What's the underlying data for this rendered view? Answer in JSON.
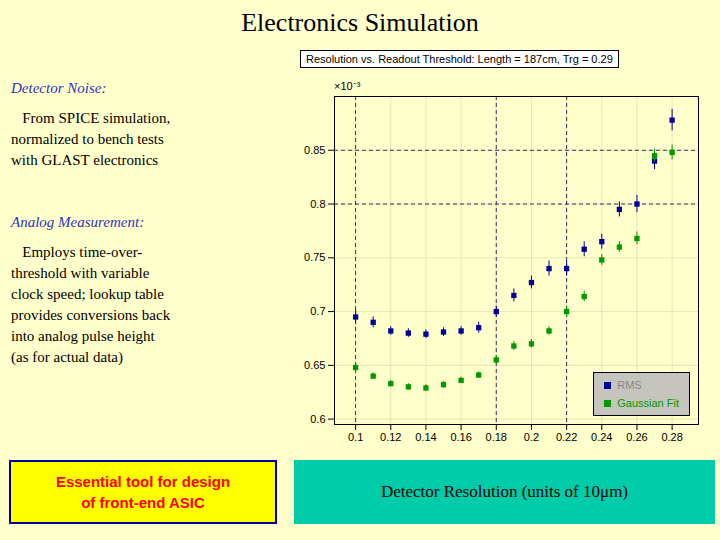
{
  "chart_data": {
    "type": "scatter",
    "title": "Electronics Simulation",
    "subtitle": "Resolution vs. Readout Threshold: Length = 187cm, Trg = 0.29",
    "x": [
      0.1,
      0.11,
      0.12,
      0.13,
      0.14,
      0.15,
      0.16,
      0.17,
      0.18,
      0.19,
      0.2,
      0.21,
      0.22,
      0.23,
      0.24,
      0.25,
      0.26,
      0.27,
      0.28
    ],
    "series": [
      {
        "name": "RMS",
        "color": "#000099",
        "marker": "square",
        "values": [
          0.695,
          0.69,
          0.682,
          0.68,
          0.679,
          0.681,
          0.682,
          0.685,
          0.7,
          0.715,
          0.727,
          0.74,
          0.74,
          0.758,
          0.765,
          0.795,
          0.8,
          0.84,
          0.878
        ],
        "errors": [
          0.006,
          0.005,
          0.004,
          0.004,
          0.004,
          0.004,
          0.004,
          0.005,
          0.005,
          0.006,
          0.006,
          0.007,
          0.007,
          0.007,
          0.007,
          0.007,
          0.008,
          0.008,
          0.01
        ]
      },
      {
        "name": "Gaussian Fit",
        "color": "#009900",
        "marker": "square",
        "values": [
          0.648,
          0.64,
          0.633,
          0.63,
          0.629,
          0.632,
          0.636,
          0.641,
          0.655,
          0.668,
          0.67,
          0.682,
          0.7,
          0.714,
          0.748,
          0.76,
          0.768,
          0.845,
          0.848
        ],
        "errors": [
          0.004,
          0.003,
          0.003,
          0.003,
          0.003,
          0.003,
          0.003,
          0.003,
          0.004,
          0.004,
          0.004,
          0.004,
          0.005,
          0.005,
          0.005,
          0.005,
          0.006,
          0.006,
          0.007
        ]
      }
    ],
    "vlines": [
      0.1,
      0.18,
      0.22
    ],
    "hlines": [
      0.8,
      0.85
    ],
    "xlim": [
      0.088,
      0.295
    ],
    "ylim": [
      0.595,
      0.9
    ],
    "xticks": [
      0.1,
      0.12,
      0.14,
      0.16,
      0.18,
      0.2,
      0.22,
      0.24,
      0.26,
      0.28
    ],
    "yticks": [
      0.6,
      0.65,
      0.7,
      0.75,
      0.8,
      0.85
    ],
    "grid": true,
    "legend": "lower right",
    "annotations": [
      {
        "text": "Detector Noise:",
        "color": "#3333BB"
      },
      {
        "text": "   From SPICE simulation,\nnormalized to bench tests\nwith GLAST electronics",
        "color": "#000000"
      },
      {
        "text": "Analog Measurement:",
        "color": "#3333BB"
      },
      {
        "text": "   Employs time-over-\nthreshold with variable\nclock speed; lookup table\nprovides conversions back\ninto analog pulse height\n(as for actual data)",
        "color": "#000000"
      },
      {
        "text": "Essential tool for design\nof front-end ASIC",
        "color": "#FF0000"
      },
      {
        "text": "Detector Resolution (units of 10μm)",
        "color": "#000000"
      },
      {
        "text": "×10⁻³"
      }
    ]
  }
}
